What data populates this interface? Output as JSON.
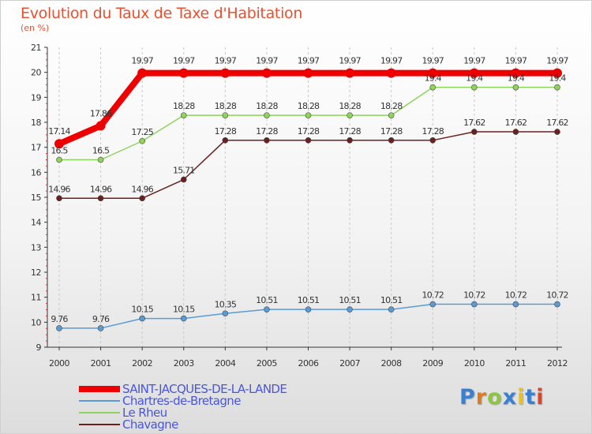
{
  "header": {
    "title": "Evolution du Taux de Taxe d'Habitation",
    "subtitle": "(en %)"
  },
  "chart_data": {
    "type": "line",
    "title": "Evolution du Taux de Taxe d'Habitation",
    "ylabel": "(en %)",
    "xlabel": "",
    "x": [
      2000,
      2001,
      2002,
      2003,
      2004,
      2005,
      2006,
      2007,
      2008,
      2009,
      2010,
      2011,
      2012
    ],
    "ylim": [
      9,
      21
    ],
    "yticks": [
      9,
      10,
      11,
      12,
      13,
      14,
      15,
      16,
      17,
      18,
      19,
      20,
      21
    ],
    "grid": "vertical-dashed",
    "legend_position": "bottom-left",
    "series": [
      {
        "name": "SAINT-JACQUES-DE-LA-LANDE",
        "color": "#ee0000",
        "values": [
          17.14,
          17.86,
          19.97,
          19.97,
          19.97,
          19.97,
          19.97,
          19.97,
          19.97,
          19.97,
          19.97,
          19.97,
          19.97
        ],
        "labels": [
          "17.14",
          "17.86",
          "19.97",
          "19.97",
          "19.97",
          "19.97",
          "19.97",
          "19.97",
          "19.97",
          "19.97",
          "19.97",
          "19.97",
          "19.97"
        ]
      },
      {
        "name": "Chartres-de-Bretagne",
        "color": "#5b9bd5",
        "values": [
          9.76,
          9.76,
          10.15,
          10.15,
          10.35,
          10.51,
          10.51,
          10.51,
          10.51,
          10.72,
          10.72,
          10.72,
          10.72
        ],
        "labels": [
          "9.76",
          "9.76",
          "10.15",
          "10.15",
          "10.35",
          "10.51",
          "10.51",
          "10.51",
          "10.51",
          "10.72",
          "10.72",
          "10.72",
          "10.72"
        ]
      },
      {
        "name": "Le Rheu",
        "color": "#8fd45a",
        "values": [
          16.5,
          16.5,
          17.25,
          18.28,
          18.28,
          18.28,
          18.28,
          18.28,
          18.28,
          19.4,
          19.4,
          19.4,
          19.4
        ],
        "labels": [
          "16.5",
          "16.5",
          "17.25",
          "18.28",
          "18.28",
          "18.28",
          "18.28",
          "18.28",
          "18.28",
          "19.4",
          "19.4",
          "19.4",
          "19.4"
        ]
      },
      {
        "name": "Chavagne",
        "color": "#6b2020",
        "values": [
          14.96,
          14.96,
          14.96,
          15.71,
          17.28,
          17.28,
          17.28,
          17.28,
          17.28,
          17.28,
          17.62,
          17.62,
          17.62
        ],
        "labels": [
          "14.96",
          "14.96",
          "14.96",
          "15.71",
          "17.28",
          "17.28",
          "17.28",
          "17.28",
          "17.28",
          "17.28",
          "17.62",
          "17.62",
          "17.62"
        ]
      }
    ]
  },
  "legend": {
    "items": [
      {
        "label": "SAINT-JACQUES-DE-LA-LANDE",
        "color": "#ee0000",
        "weight": "thick"
      },
      {
        "label": "Chartres-de-Bretagne",
        "color": "#5b9bd5",
        "weight": "thin"
      },
      {
        "label": "Le Rheu",
        "color": "#8fd45a",
        "weight": "thin"
      },
      {
        "label": "Chavagne",
        "color": "#6b2020",
        "weight": "thin"
      }
    ]
  },
  "logo": {
    "letters": [
      "P",
      "r",
      "o",
      "x",
      "i",
      "t",
      "i"
    ],
    "colors": [
      "#3a7fd0",
      "#e07a1f",
      "#8cc63f",
      "#3a7fd0",
      "#e8c21a",
      "#3a7fd0",
      "#d9442a"
    ]
  }
}
